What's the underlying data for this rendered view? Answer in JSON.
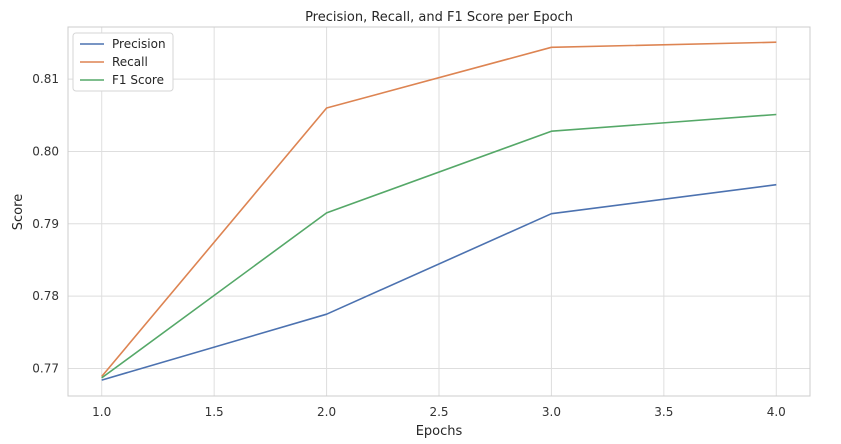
{
  "chart_data": {
    "type": "line",
    "title": "Precision, Recall, and F1 Score per Epoch",
    "xlabel": "Epochs",
    "ylabel": "Score",
    "x": [
      1.0,
      2.0,
      3.0,
      4.0
    ],
    "xlim": [
      0.85,
      4.15
    ],
    "ylim": [
      0.7662,
      0.8172
    ],
    "xticks": [
      1.0,
      1.5,
      2.0,
      2.5,
      3.0,
      3.5,
      4.0
    ],
    "xtick_labels": [
      "1.0",
      "1.5",
      "2.0",
      "2.5",
      "3.0",
      "3.5",
      "4.0"
    ],
    "yticks": [
      0.77,
      0.78,
      0.79,
      0.8,
      0.81
    ],
    "ytick_labels": [
      "0.77",
      "0.78",
      "0.79",
      "0.80",
      "0.81"
    ],
    "grid": true,
    "legend_position": "top-left",
    "series": [
      {
        "name": "Precision",
        "color": "#4c72b0",
        "values": [
          0.7684,
          0.7775,
          0.7914,
          0.7954
        ]
      },
      {
        "name": "Recall",
        "color": "#dd8452",
        "values": [
          0.7689,
          0.806,
          0.8144,
          0.8151
        ]
      },
      {
        "name": "F1 Score",
        "color": "#55a868",
        "values": [
          0.7687,
          0.7915,
          0.8028,
          0.8051
        ]
      }
    ]
  }
}
